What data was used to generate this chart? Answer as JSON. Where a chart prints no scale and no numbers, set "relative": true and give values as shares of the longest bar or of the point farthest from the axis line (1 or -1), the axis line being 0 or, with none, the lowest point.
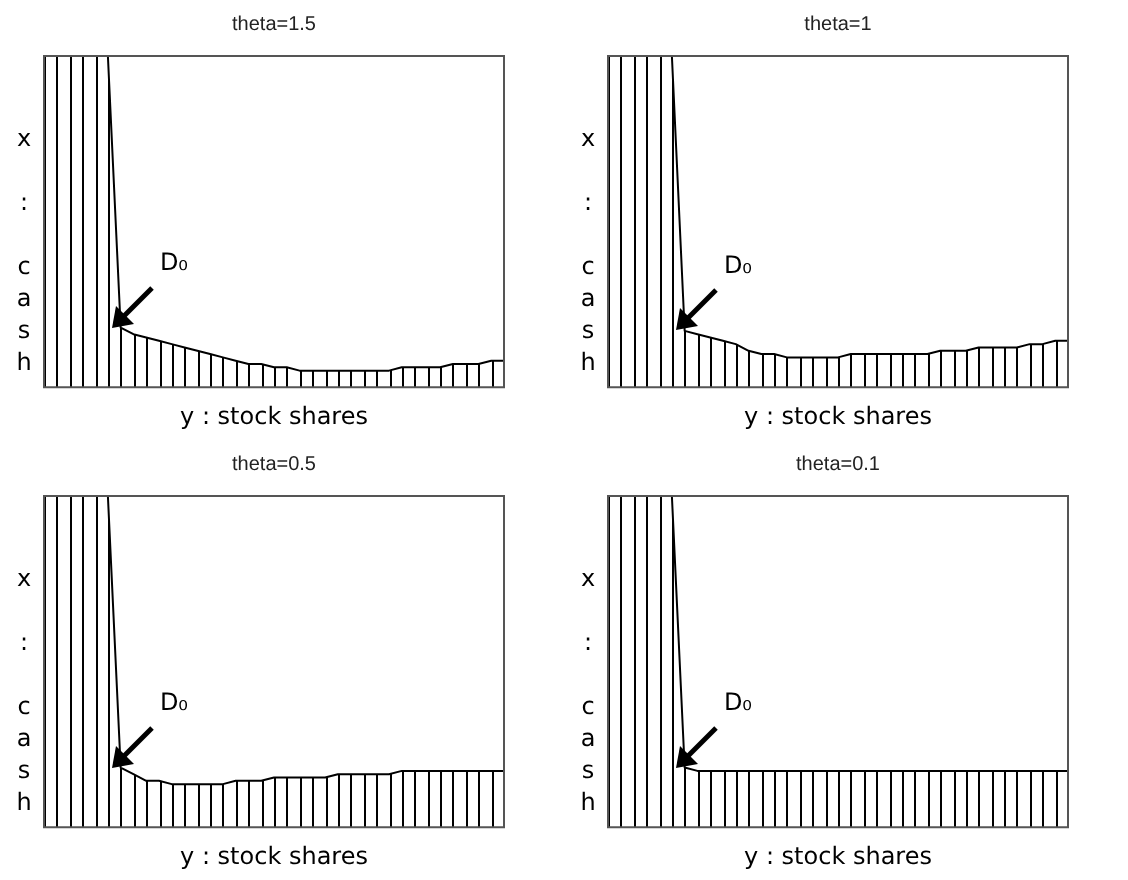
{
  "chart_data": [
    {
      "type": "line",
      "grid": "x",
      "title": "theta=1.5",
      "xlabel": "y : stock shares",
      "ylabel": "x : cash",
      "relative": true,
      "annotations": [
        "D₀"
      ],
      "categories": [
        null,
        null,
        null,
        null,
        null,
        null,
        null,
        null,
        null,
        null,
        null,
        null,
        null,
        null,
        null,
        null,
        null,
        null,
        null,
        null,
        null,
        null,
        null,
        null,
        null,
        null,
        null,
        null,
        null,
        null,
        null,
        null,
        null,
        null,
        null,
        null,
        null
      ],
      "series": [
        {
          "color": "#000000",
          "values": [
            1,
            1,
            1,
            1,
            1,
            1,
            0.18,
            0.16,
            0.15,
            0.14,
            0.13,
            0.12,
            0.11,
            0.1,
            0.09,
            0.08,
            0.07,
            0.07,
            0.06,
            0.06,
            0.05,
            0.05,
            0.05,
            0.05,
            0.05,
            0.05,
            0.05,
            0.05,
            0.06,
            0.06,
            0.06,
            0.06,
            0.07,
            0.07,
            0.07,
            0.08,
            0.08
          ]
        }
      ]
    },
    {
      "type": "line",
      "grid": "x",
      "title": "theta=1",
      "xlabel": "y : stock shares",
      "ylabel": "x : cash",
      "relative": true,
      "annotations": [
        "D₀"
      ],
      "categories": [
        null,
        null,
        null,
        null,
        null,
        null,
        null,
        null,
        null,
        null,
        null,
        null,
        null,
        null,
        null,
        null,
        null,
        null,
        null,
        null,
        null,
        null,
        null,
        null,
        null,
        null,
        null,
        null,
        null,
        null,
        null,
        null,
        null,
        null,
        null,
        null,
        null
      ],
      "series": [
        {
          "color": "#000000",
          "values": [
            1,
            1,
            1,
            1,
            1,
            1,
            0.17,
            0.16,
            0.15,
            0.14,
            0.13,
            0.11,
            0.1,
            0.1,
            0.09,
            0.09,
            0.09,
            0.09,
            0.09,
            0.1,
            0.1,
            0.1,
            0.1,
            0.1,
            0.1,
            0.1,
            0.11,
            0.11,
            0.11,
            0.12,
            0.12,
            0.12,
            0.12,
            0.13,
            0.13,
            0.14,
            0.14
          ]
        }
      ]
    },
    {
      "type": "line",
      "grid": "x",
      "title": "theta=0.5",
      "xlabel": "y : stock shares",
      "ylabel": "x : cash",
      "relative": true,
      "annotations": [
        "D₀"
      ],
      "categories": [
        null,
        null,
        null,
        null,
        null,
        null,
        null,
        null,
        null,
        null,
        null,
        null,
        null,
        null,
        null,
        null,
        null,
        null,
        null,
        null,
        null,
        null,
        null,
        null,
        null,
        null,
        null,
        null,
        null,
        null,
        null,
        null,
        null,
        null,
        null,
        null,
        null
      ],
      "series": [
        {
          "color": "#000000",
          "values": [
            1,
            1,
            1,
            1,
            1,
            1,
            0.18,
            0.16,
            0.14,
            0.14,
            0.13,
            0.13,
            0.13,
            0.13,
            0.13,
            0.14,
            0.14,
            0.14,
            0.15,
            0.15,
            0.15,
            0.15,
            0.15,
            0.16,
            0.16,
            0.16,
            0.16,
            0.16,
            0.17,
            0.17,
            0.17,
            0.17,
            0.17,
            0.17,
            0.17,
            0.17,
            0.17
          ]
        }
      ]
    },
    {
      "type": "line",
      "grid": "x",
      "title": "theta=0.1",
      "xlabel": "y : stock shares",
      "ylabel": "x : cash",
      "relative": true,
      "annotations": [
        "D₀"
      ],
      "categories": [
        null,
        null,
        null,
        null,
        null,
        null,
        null,
        null,
        null,
        null,
        null,
        null,
        null,
        null,
        null,
        null,
        null,
        null,
        null,
        null,
        null,
        null,
        null,
        null,
        null,
        null,
        null,
        null,
        null,
        null,
        null,
        null,
        null,
        null,
        null,
        null,
        null
      ],
      "series": [
        {
          "color": "#000000",
          "values": [
            1,
            1,
            1,
            1,
            1,
            1,
            0.18,
            0.17,
            0.17,
            0.17,
            0.17,
            0.17,
            0.17,
            0.17,
            0.17,
            0.17,
            0.17,
            0.17,
            0.17,
            0.17,
            0.17,
            0.17,
            0.17,
            0.17,
            0.17,
            0.17,
            0.17,
            0.17,
            0.17,
            0.17,
            0.17,
            0.17,
            0.17,
            0.17,
            0.17,
            0.17,
            0.17
          ]
        }
      ]
    }
  ]
}
